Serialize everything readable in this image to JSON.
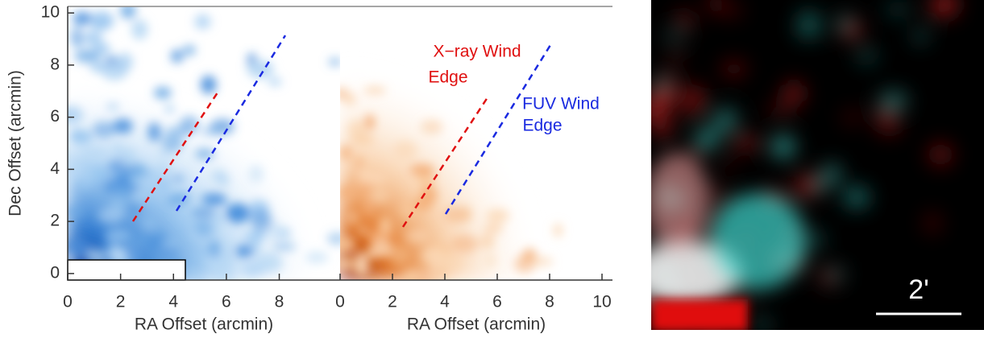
{
  "chart_data": [
    {
      "type": "image",
      "xlabel": "RA Offset (arcmin)",
      "ylabel": "Dec Offset (arcmin)",
      "xlim": [
        0,
        10.3
      ],
      "ylim": [
        -0.25,
        10.25
      ],
      "xticks": [
        0,
        2,
        4,
        6,
        8
      ],
      "yticks": [
        0,
        2,
        4,
        6,
        8,
        10
      ]
    },
    {
      "type": "image",
      "xlabel": "RA Offset (arcmin)",
      "xlim": [
        0,
        10.4
      ],
      "ylim": [
        -0.25,
        10.25
      ],
      "xticks": [
        0,
        2,
        4,
        6,
        8,
        10
      ],
      "annotations": [
        "X−ray Wind",
        "Edge",
        "FUV Wind",
        "Edge"
      ]
    },
    {
      "type": "image",
      "annotations": [
        "2'"
      ]
    }
  ]
}
